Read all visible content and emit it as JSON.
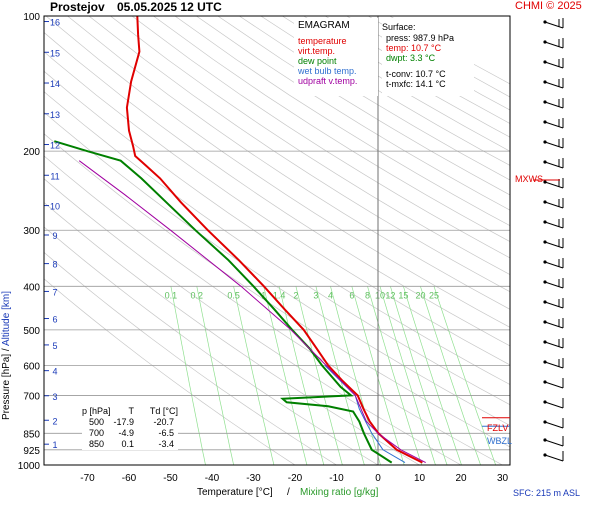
{
  "header": {
    "station": "Prostejov",
    "datetime": "05.05.2025 12 UTC",
    "credit": "CHMI © 2025"
  },
  "legend": {
    "title": "EMAGRAM",
    "items": [
      {
        "label": "temperature",
        "color": "#e00000"
      },
      {
        "label": "virt.temp.",
        "color": "#e00000"
      },
      {
        "label": "dew point",
        "color": "#008000"
      },
      {
        "label": "wet bulb temp.",
        "color": "#3070d0"
      },
      {
        "label": "udpraft v.temp.",
        "color": "#a000a0"
      }
    ]
  },
  "surface": {
    "title": "Surface:",
    "press": "press: 987.9 hPa",
    "temp": "temp: 10.7 °C",
    "dwpt": "dwpt: 3.3 °C",
    "tconv": "t-conv: 10.7 °C",
    "tmxfc": "t-mxfc: 14.1 °C"
  },
  "table": {
    "header": [
      "p [hPa]",
      "T",
      "Td [°C]"
    ],
    "rows": [
      [
        "500",
        "-17.9",
        "-20.7"
      ],
      [
        "700",
        "-4.9",
        "-6.5"
      ],
      [
        "850",
        "0.1",
        "-3.4"
      ]
    ]
  },
  "axes": {
    "y_title_pressure": "Pressure [hPa]",
    "y_sep": "/",
    "y_title_altitude": "Altitude [km]",
    "x_title_temp": "Temperature [°C]",
    "x_sep": "/",
    "x_title_mix": "Mixing ratio [g/kg]",
    "sfc": "SFC: 215 m ASL"
  },
  "markers": {
    "mxws": "MXWS",
    "fzlv": "FZLV",
    "wbzl": "WBZL"
  },
  "chart_data": {
    "type": "line",
    "y_scale": "log",
    "ylim": [
      1000,
      100
    ],
    "xlim": [
      -80,
      30
    ],
    "pressure_ticks": [
      100,
      200,
      300,
      400,
      500,
      600,
      700,
      850,
      925,
      1000
    ],
    "temp_ticks": [
      -70,
      -60,
      -50,
      -40,
      -30,
      -20,
      -10,
      0,
      10,
      20,
      30
    ],
    "altitude_ticks": [
      1,
      2,
      3,
      4,
      5,
      6,
      7,
      8,
      9,
      10,
      11,
      12,
      13,
      14,
      15,
      16
    ],
    "mixing_ratio_ticks": [
      "0.1",
      "0.2",
      "0.5",
      "1",
      "1.4",
      "2",
      "3",
      "4",
      "6",
      "8",
      "10",
      "12",
      "15",
      "20",
      "25"
    ],
    "series": [
      {
        "name": "temperature",
        "color": "#e00000",
        "points": [
          [
            987.9,
            10.7
          ],
          [
            925,
            4.5
          ],
          [
            850,
            0.1
          ],
          [
            800,
            -2.0
          ],
          [
            750,
            -3.5
          ],
          [
            700,
            -4.9
          ],
          [
            650,
            -8.5
          ],
          [
            600,
            -12.0
          ],
          [
            550,
            -14.8
          ],
          [
            500,
            -17.9
          ],
          [
            450,
            -22.5
          ],
          [
            400,
            -27.5
          ],
          [
            350,
            -33.5
          ],
          [
            300,
            -41.0
          ],
          [
            260,
            -47.5
          ],
          [
            230,
            -52.5
          ],
          [
            215,
            -56.0
          ],
          [
            205,
            -58.5
          ],
          [
            195,
            -59.0
          ],
          [
            180,
            -60.0
          ],
          [
            160,
            -60.5
          ],
          [
            140,
            -59.5
          ],
          [
            120,
            -57.5
          ],
          [
            110,
            -57.8
          ],
          [
            100,
            -58.0
          ]
        ]
      },
      {
        "name": "dew point",
        "color": "#008000",
        "points": [
          [
            987.9,
            3.3
          ],
          [
            925,
            -1.5
          ],
          [
            850,
            -3.4
          ],
          [
            800,
            -4.5
          ],
          [
            760,
            -6.0
          ],
          [
            740,
            -12.0
          ],
          [
            725,
            -22.0
          ],
          [
            712,
            -23.0
          ],
          [
            700,
            -6.5
          ],
          [
            670,
            -9.0
          ],
          [
            600,
            -13.5
          ],
          [
            550,
            -16.5
          ],
          [
            500,
            -20.7
          ],
          [
            450,
            -25.0
          ],
          [
            400,
            -30.0
          ],
          [
            350,
            -36.0
          ],
          [
            300,
            -44.0
          ],
          [
            260,
            -51.0
          ],
          [
            230,
            -57.0
          ],
          [
            210,
            -62.0
          ],
          [
            200,
            -70.0
          ],
          [
            190,
            -78.0
          ]
        ]
      },
      {
        "name": "wet bulb temp.",
        "color": "#3070d0",
        "points": [
          [
            987.9,
            6.5
          ],
          [
            925,
            1.2
          ],
          [
            850,
            -1.5
          ],
          [
            800,
            -3.0
          ],
          [
            750,
            -4.5
          ],
          [
            700,
            -5.5
          ],
          [
            650,
            -9.0
          ],
          [
            600,
            -12.8
          ]
        ]
      },
      {
        "name": "udpraft v.temp.",
        "color": "#a000a0",
        "points": [
          [
            987.9,
            11.5
          ],
          [
            925,
            5.5
          ],
          [
            850,
            0.0
          ],
          [
            800,
            -2.8
          ],
          [
            700,
            -5.5
          ],
          [
            600,
            -12.5
          ],
          [
            500,
            -21.0
          ],
          [
            400,
            -33.0
          ],
          [
            300,
            -50.0
          ],
          [
            250,
            -61.0
          ],
          [
            210,
            -72.0
          ]
        ]
      }
    ]
  }
}
